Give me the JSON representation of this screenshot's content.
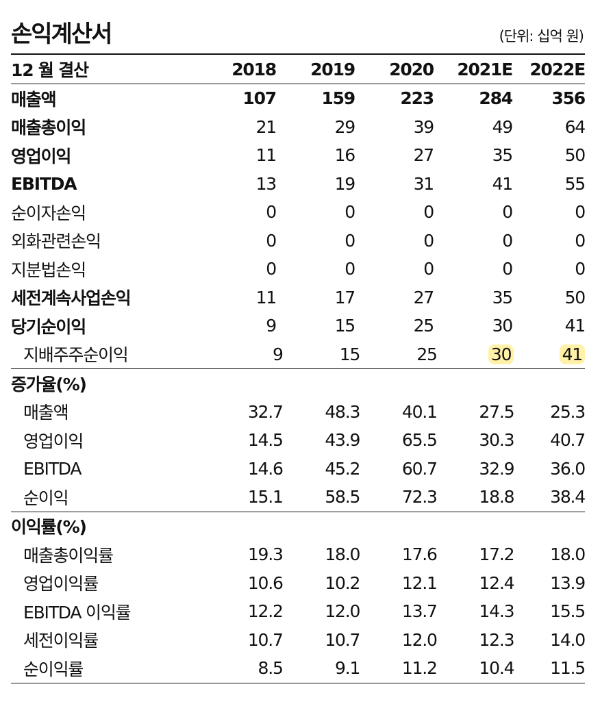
{
  "title": "손익계산서",
  "unit": "(단위: 십억 원)",
  "header": {
    "label": "12 월 결산",
    "years": [
      "2018",
      "2019",
      "2020",
      "2021E",
      "2022E"
    ]
  },
  "colors": {
    "highlight": "#fff1a8"
  },
  "income": [
    {
      "label": "매출액",
      "values": [
        "107",
        "159",
        "223",
        "284",
        "356"
      ]
    },
    {
      "label": "매출총이익",
      "values": [
        "21",
        "29",
        "39",
        "49",
        "64"
      ]
    },
    {
      "label": "영업이익",
      "values": [
        "11",
        "16",
        "27",
        "35",
        "50"
      ]
    },
    {
      "label": "EBITDA",
      "values": [
        "13",
        "19",
        "31",
        "41",
        "55"
      ]
    },
    {
      "label": "순이자손익",
      "values": [
        "0",
        "0",
        "0",
        "0",
        "0"
      ]
    },
    {
      "label": "외화관련손익",
      "values": [
        "0",
        "0",
        "0",
        "0",
        "0"
      ]
    },
    {
      "label": "지분법손익",
      "values": [
        "0",
        "0",
        "0",
        "0",
        "0"
      ]
    },
    {
      "label": "세전계속사업손익",
      "values": [
        "11",
        "17",
        "27",
        "35",
        "50"
      ]
    },
    {
      "label": "당기순이익",
      "values": [
        "9",
        "15",
        "25",
        "30",
        "41"
      ]
    },
    {
      "label": "지배주주순이익",
      "values": [
        "9",
        "15",
        "25",
        "30",
        "41"
      ]
    }
  ],
  "growth": {
    "title": "증가율(%)",
    "rows": [
      {
        "label": "매출액",
        "values": [
          "32.7",
          "48.3",
          "40.1",
          "27.5",
          "25.3"
        ]
      },
      {
        "label": "영업이익",
        "values": [
          "14.5",
          "43.9",
          "65.5",
          "30.3",
          "40.7"
        ]
      },
      {
        "label": "EBITDA",
        "values": [
          "14.6",
          "45.2",
          "60.7",
          "32.9",
          "36.0"
        ]
      },
      {
        "label": "순이익",
        "values": [
          "15.1",
          "58.5",
          "72.3",
          "18.8",
          "38.4"
        ]
      }
    ]
  },
  "margin": {
    "title": "이익률(%)",
    "rows": [
      {
        "label": "매출총이익률",
        "values": [
          "19.3",
          "18.0",
          "17.6",
          "17.2",
          "18.0"
        ]
      },
      {
        "label": "영업이익률",
        "values": [
          "10.6",
          "10.2",
          "12.1",
          "12.4",
          "13.9"
        ]
      },
      {
        "label": "EBITDA 이익률",
        "values": [
          "12.2",
          "12.0",
          "13.7",
          "14.3",
          "15.5"
        ]
      },
      {
        "label": "세전이익률",
        "values": [
          "10.7",
          "10.7",
          "12.0",
          "12.3",
          "14.0"
        ]
      },
      {
        "label": "순이익률",
        "values": [
          "8.5",
          "9.1",
          "11.2",
          "10.4",
          "11.5"
        ]
      }
    ]
  }
}
